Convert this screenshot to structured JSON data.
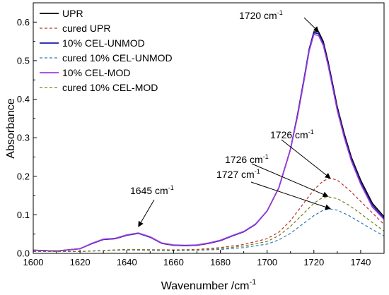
{
  "chart_data": {
    "type": "line",
    "title": "",
    "xlabel": "Wavenumber /cm",
    "xlabel_sup": "-1",
    "ylabel": "Absorbance",
    "xlim": [
      1600,
      1750
    ],
    "ylim": [
      0,
      0.65
    ],
    "x_ticks": [
      1600,
      1620,
      1640,
      1660,
      1680,
      1700,
      1720,
      1740
    ],
    "y_ticks": [
      0.0,
      0.1,
      0.2,
      0.3,
      0.4,
      0.5,
      0.6
    ],
    "x_tick_labels": [
      "1600",
      "1620",
      "1640",
      "1660",
      "1680",
      "1700",
      "1720",
      "1740"
    ],
    "y_tick_labels": [
      "0.0",
      "0.1",
      "0.2",
      "0.3",
      "0.4",
      "0.5",
      "0.6"
    ],
    "grid": false,
    "legend_position": "top-left",
    "series": [
      {
        "name": "UPR",
        "color": "#000000",
        "dash": "solid",
        "x": [
          1600,
          1610,
          1620,
          1625,
          1630,
          1635,
          1640,
          1645,
          1650,
          1655,
          1660,
          1665,
          1670,
          1675,
          1680,
          1685,
          1690,
          1695,
          1700,
          1705,
          1710,
          1713,
          1716,
          1718,
          1720,
          1722,
          1724,
          1726,
          1728,
          1730,
          1733,
          1736,
          1740,
          1745,
          1750
        ],
        "y": [
          0.008,
          0.006,
          0.012,
          0.025,
          0.036,
          0.038,
          0.047,
          0.052,
          0.042,
          0.026,
          0.021,
          0.02,
          0.021,
          0.026,
          0.033,
          0.045,
          0.056,
          0.075,
          0.11,
          0.17,
          0.27,
          0.36,
          0.46,
          0.53,
          0.575,
          0.575,
          0.55,
          0.5,
          0.44,
          0.38,
          0.31,
          0.25,
          0.19,
          0.13,
          0.095
        ]
      },
      {
        "name": "cured UPR",
        "color": "#b5332b",
        "dash": "dashed",
        "x": [
          1600,
          1620,
          1640,
          1660,
          1670,
          1680,
          1690,
          1700,
          1705,
          1710,
          1715,
          1720,
          1724,
          1727,
          1730,
          1735,
          1740,
          1745,
          1750
        ],
        "y": [
          0.005,
          0.005,
          0.01,
          0.009,
          0.01,
          0.015,
          0.023,
          0.038,
          0.055,
          0.085,
          0.125,
          0.165,
          0.188,
          0.195,
          0.19,
          0.165,
          0.135,
          0.105,
          0.075
        ]
      },
      {
        "name": "10% CEL-UNMOD",
        "color": "#1a1aa6",
        "dash": "solid",
        "x": [
          1600,
          1610,
          1620,
          1625,
          1630,
          1635,
          1640,
          1645,
          1650,
          1655,
          1660,
          1665,
          1670,
          1675,
          1680,
          1685,
          1690,
          1695,
          1700,
          1705,
          1710,
          1713,
          1716,
          1718,
          1720,
          1722,
          1724,
          1726,
          1728,
          1730,
          1733,
          1736,
          1740,
          1745,
          1750
        ],
        "y": [
          0.008,
          0.006,
          0.012,
          0.025,
          0.036,
          0.038,
          0.047,
          0.052,
          0.042,
          0.026,
          0.021,
          0.02,
          0.021,
          0.026,
          0.033,
          0.045,
          0.056,
          0.075,
          0.11,
          0.17,
          0.27,
          0.36,
          0.46,
          0.53,
          0.572,
          0.57,
          0.545,
          0.495,
          0.435,
          0.375,
          0.305,
          0.245,
          0.185,
          0.125,
          0.09
        ]
      },
      {
        "name": "cured 10% CEL-UNMOD",
        "color": "#2b7bb9",
        "dash": "dashed",
        "x": [
          1600,
          1620,
          1640,
          1660,
          1670,
          1680,
          1690,
          1700,
          1705,
          1710,
          1715,
          1720,
          1724,
          1727,
          1730,
          1735,
          1740,
          1745,
          1750
        ],
        "y": [
          0.005,
          0.005,
          0.009,
          0.007,
          0.008,
          0.01,
          0.015,
          0.024,
          0.035,
          0.052,
          0.075,
          0.098,
          0.112,
          0.115,
          0.112,
          0.098,
          0.08,
          0.062,
          0.045
        ]
      },
      {
        "name": "10% CEL-MOD",
        "color": "#a03be0",
        "dash": "solid",
        "x": [
          1600,
          1610,
          1620,
          1625,
          1630,
          1635,
          1640,
          1645,
          1650,
          1655,
          1660,
          1665,
          1670,
          1675,
          1680,
          1685,
          1690,
          1695,
          1700,
          1705,
          1710,
          1713,
          1716,
          1718,
          1720,
          1722,
          1724,
          1726,
          1728,
          1730,
          1733,
          1736,
          1740,
          1745,
          1750
        ],
        "y": [
          0.008,
          0.006,
          0.012,
          0.026,
          0.037,
          0.039,
          0.048,
          0.053,
          0.043,
          0.027,
          0.022,
          0.021,
          0.022,
          0.027,
          0.034,
          0.046,
          0.057,
          0.076,
          0.11,
          0.17,
          0.27,
          0.355,
          0.455,
          0.525,
          0.568,
          0.565,
          0.54,
          0.49,
          0.43,
          0.37,
          0.3,
          0.24,
          0.18,
          0.12,
          0.088
        ]
      },
      {
        "name": "cured 10% CEL-MOD",
        "color": "#7a7a1e",
        "dash": "dashed",
        "x": [
          1600,
          1620,
          1640,
          1660,
          1670,
          1680,
          1690,
          1700,
          1705,
          1710,
          1715,
          1720,
          1723,
          1726,
          1730,
          1735,
          1740,
          1745,
          1750
        ],
        "y": [
          0.005,
          0.005,
          0.01,
          0.008,
          0.009,
          0.012,
          0.019,
          0.031,
          0.046,
          0.07,
          0.1,
          0.13,
          0.142,
          0.147,
          0.142,
          0.125,
          0.103,
          0.08,
          0.058
        ]
      }
    ],
    "annotations": [
      {
        "label": "1720 cm",
        "sup": "-1",
        "target_x": 1722,
        "target_y": 0.575
      },
      {
        "label": "1726 cm",
        "sup": "-1",
        "target_x": 1727,
        "target_y": 0.195
      },
      {
        "label": "1726 cm",
        "sup": "-1",
        "target_x": 1726,
        "target_y": 0.148
      },
      {
        "label": "1727 cm",
        "sup": "-1",
        "target_x": 1727,
        "target_y": 0.116
      },
      {
        "label": "1645 cm",
        "sup": "-1",
        "target_x": 1645,
        "target_y": 0.055
      }
    ]
  }
}
